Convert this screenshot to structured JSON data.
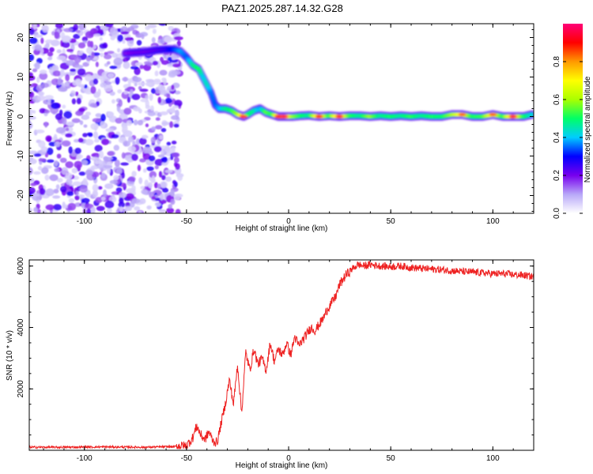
{
  "figure_title": "PAZ1.2025.287.14.32.G28",
  "colors": {
    "axis": "#000000",
    "snr_line": "#ee2222",
    "background": "#ffffff"
  },
  "chart_data": [
    {
      "type": "heatmap",
      "title": "PAZ1.2025.287.14.32.G28",
      "xlabel": "Height of straight line (km)",
      "ylabel": "Frequency (Hz)",
      "xlim": [
        -127,
        120
      ],
      "ylim": [
        -24.5,
        23.5
      ],
      "xticks": [
        -100,
        -50,
        0,
        50,
        100
      ],
      "xtick_labels": [
        "-100",
        "-50",
        "0",
        "50",
        "100"
      ],
      "yticks": [
        -20,
        -10,
        0,
        10,
        20
      ],
      "ytick_labels": [
        "-20",
        "-10",
        "0",
        "10",
        "20"
      ],
      "noise_region_x": [
        -127,
        -53
      ],
      "ridge": [
        {
          "x": -80,
          "y": 16.0,
          "amp": 0.22
        },
        {
          "x": -75,
          "y": 16.2,
          "amp": 0.25
        },
        {
          "x": -70,
          "y": 16.4,
          "amp": 0.25
        },
        {
          "x": -65,
          "y": 16.8,
          "amp": 0.27
        },
        {
          "x": -60,
          "y": 17.0,
          "amp": 0.3
        },
        {
          "x": -56,
          "y": 17.0,
          "amp": 0.38
        },
        {
          "x": -53,
          "y": 16.5,
          "amp": 0.45
        },
        {
          "x": -50,
          "y": 15.0,
          "amp": 0.4
        },
        {
          "x": -47,
          "y": 13.0,
          "amp": 0.55
        },
        {
          "x": -44,
          "y": 12.0,
          "amp": 0.6
        },
        {
          "x": -42,
          "y": 10.0,
          "amp": 0.48
        },
        {
          "x": -40,
          "y": 8.0,
          "amp": 0.52
        },
        {
          "x": -38,
          "y": 6.0,
          "amp": 0.42
        },
        {
          "x": -36,
          "y": 3.0,
          "amp": 0.4
        },
        {
          "x": -34,
          "y": 2.0,
          "amp": 0.45
        },
        {
          "x": -31,
          "y": 2.0,
          "amp": 0.55
        },
        {
          "x": -28,
          "y": 1.5,
          "amp": 0.6
        },
        {
          "x": -25,
          "y": 0.5,
          "amp": 0.7
        },
        {
          "x": -22,
          "y": 0.0,
          "amp": 0.95
        },
        {
          "x": -20,
          "y": 0.5,
          "amp": 0.6
        },
        {
          "x": -17,
          "y": 1.5,
          "amp": 0.55
        },
        {
          "x": -14,
          "y": 2.0,
          "amp": 0.45
        },
        {
          "x": -11,
          "y": 1.0,
          "amp": 0.65
        },
        {
          "x": -8,
          "y": 0.5,
          "amp": 0.6
        },
        {
          "x": -5,
          "y": 0.0,
          "amp": 0.95
        },
        {
          "x": -2,
          "y": 0.0,
          "amp": 0.97
        },
        {
          "x": 2,
          "y": 0.0,
          "amp": 0.7
        },
        {
          "x": 6,
          "y": 0.2,
          "amp": 0.6
        },
        {
          "x": 10,
          "y": 0.3,
          "amp": 0.55
        },
        {
          "x": 15,
          "y": 0.0,
          "amp": 0.92
        },
        {
          "x": 20,
          "y": 0.2,
          "amp": 0.6
        },
        {
          "x": 25,
          "y": 0.0,
          "amp": 0.95
        },
        {
          "x": 30,
          "y": 0.2,
          "amp": 0.62
        },
        {
          "x": 35,
          "y": 0.2,
          "amp": 0.55
        },
        {
          "x": 40,
          "y": 0.0,
          "amp": 0.7
        },
        {
          "x": 45,
          "y": 0.2,
          "amp": 0.55
        },
        {
          "x": 50,
          "y": 0.0,
          "amp": 0.6
        },
        {
          "x": 55,
          "y": 0.2,
          "amp": 0.55
        },
        {
          "x": 60,
          "y": 0.0,
          "amp": 0.62
        },
        {
          "x": 65,
          "y": 0.2,
          "amp": 0.55
        },
        {
          "x": 70,
          "y": 0.0,
          "amp": 0.6
        },
        {
          "x": 75,
          "y": 0.0,
          "amp": 0.58
        },
        {
          "x": 80,
          "y": 0.5,
          "amp": 0.7
        },
        {
          "x": 85,
          "y": 0.5,
          "amp": 0.85
        },
        {
          "x": 90,
          "y": 0.0,
          "amp": 0.6
        },
        {
          "x": 95,
          "y": 0.0,
          "amp": 0.62
        },
        {
          "x": 100,
          "y": 0.5,
          "amp": 0.85
        },
        {
          "x": 105,
          "y": 0.0,
          "amp": 0.6
        },
        {
          "x": 110,
          "y": 0.0,
          "amp": 0.95
        },
        {
          "x": 115,
          "y": 0.0,
          "amp": 0.62
        },
        {
          "x": 119,
          "y": 0.5,
          "amp": 0.5
        }
      ],
      "colorbar": {
        "label": "Normalized spectral amplitude",
        "range": [
          0,
          1
        ],
        "ticks": [
          0.0,
          0.2,
          0.4,
          0.6,
          0.8
        ],
        "tick_labels": [
          "0.0",
          "0.2",
          "0.4",
          "0.6",
          "0.8"
        ],
        "colors": [
          "#ffffff",
          "#b8a8f8",
          "#7700ee",
          "#0000ff",
          "#00ccff",
          "#00ff66",
          "#aaff00",
          "#ffff00",
          "#ff9900",
          "#ff0000",
          "#ff0077"
        ]
      }
    },
    {
      "type": "line",
      "xlabel": "Height of straight line (km)",
      "ylabel": "SNR (10 * v/v)",
      "xlim": [
        -127,
        120
      ],
      "ylim": [
        0,
        6200
      ],
      "xticks": [
        -100,
        -50,
        0,
        50,
        100
      ],
      "xtick_labels": [
        "-100",
        "-50",
        "0",
        "50",
        "100"
      ],
      "yticks": [
        2000,
        4000,
        6000
      ],
      "ytick_labels": [
        "2000",
        "4000",
        "6000"
      ],
      "series": [
        {
          "name": "SNR",
          "x": [
            -127,
            -110,
            -90,
            -70,
            -55,
            -50,
            -47,
            -45,
            -43,
            -41,
            -39,
            -37,
            -35,
            -33,
            -31,
            -29,
            -27,
            -25,
            -23,
            -21,
            -19,
            -17,
            -15,
            -13,
            -11,
            -9,
            -7,
            -5,
            -3,
            -1,
            1,
            3,
            5,
            7,
            9,
            11,
            13,
            15,
            17,
            19,
            21,
            23,
            25,
            28,
            31,
            34,
            37,
            40,
            45,
            50,
            55,
            60,
            65,
            70,
            75,
            80,
            85,
            90,
            95,
            100,
            105,
            110,
            115,
            120
          ],
          "values": [
            100,
            100,
            110,
            100,
            120,
            150,
            400,
            800,
            500,
            350,
            600,
            300,
            250,
            900,
            1500,
            2300,
            1500,
            2800,
            1200,
            3200,
            2600,
            3300,
            2800,
            3000,
            2600,
            3500,
            2900,
            3300,
            3100,
            3500,
            3100,
            3700,
            3400,
            3600,
            3800,
            4000,
            3900,
            4100,
            4300,
            4600,
            4800,
            5000,
            5400,
            5700,
            5900,
            6050,
            6000,
            6050,
            6000,
            5980,
            6000,
            5950,
            5920,
            5900,
            5880,
            5850,
            5820,
            5800,
            5780,
            5750,
            5750,
            5720,
            5700,
            5650
          ],
          "noise_amplitude": 160
        }
      ]
    }
  ]
}
